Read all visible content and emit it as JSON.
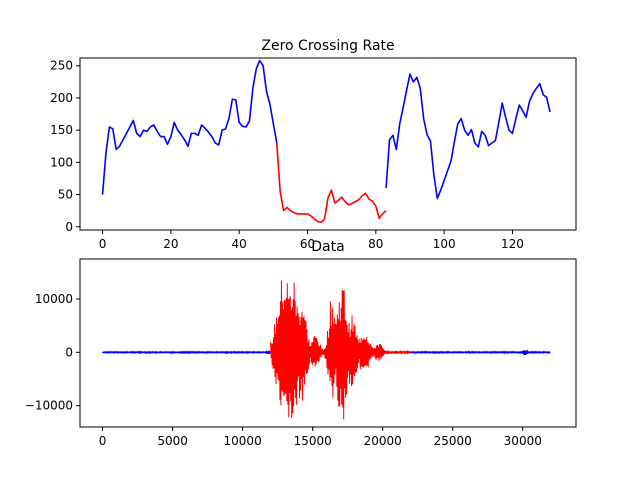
{
  "chart_data": [
    {
      "type": "line",
      "title": "Zero Crossing Rate",
      "xlim": [
        -6.6,
        138.6
      ],
      "ylim": [
        -5,
        262
      ],
      "xticks": [
        0,
        20,
        40,
        60,
        80,
        100,
        120
      ],
      "xtick_labels": [
        "0",
        "20",
        "40",
        "60",
        "80",
        "100",
        "120"
      ],
      "yticks": [
        0,
        50,
        100,
        150,
        200,
        250
      ],
      "ytick_labels": [
        "0",
        "50",
        "100",
        "150",
        "200",
        "250"
      ],
      "colors": {
        "unvoiced": "#0000ff",
        "voiced": "#ff0000"
      },
      "series": [
        {
          "color": "#0000ff",
          "x": [
            0,
            1,
            2,
            3,
            4,
            5,
            6,
            7,
            8,
            9,
            10,
            11,
            12,
            13,
            14,
            15,
            16,
            17,
            18,
            19,
            20,
            21,
            22,
            23,
            24,
            25,
            26,
            27,
            28,
            29,
            30,
            31,
            32,
            33,
            34,
            35,
            36,
            37,
            38,
            39,
            40,
            41,
            42,
            43,
            44,
            45,
            46,
            47,
            48,
            49,
            50,
            51
          ],
          "y": [
            50,
            115,
            155,
            152,
            120,
            125,
            135,
            145,
            155,
            165,
            145,
            140,
            150,
            148,
            155,
            158,
            148,
            140,
            140,
            128,
            140,
            162,
            150,
            143,
            135,
            125,
            145,
            145,
            142,
            158,
            153,
            147,
            140,
            130,
            127,
            150,
            152,
            168,
            198,
            197,
            162,
            156,
            155,
            164,
            215,
            245,
            258,
            250,
            210,
            190,
            160,
            130
          ]
        },
        {
          "color": "#ff0000",
          "x": [
            51,
            52,
            53,
            54,
            55,
            56,
            57,
            58,
            59,
            60,
            61,
            62,
            63,
            64,
            65,
            66,
            67,
            68,
            69,
            70,
            71,
            72,
            73,
            74,
            75,
            76,
            77,
            78,
            79,
            80,
            81,
            82,
            83
          ],
          "y": [
            130,
            55,
            25,
            30,
            25,
            22,
            20,
            20,
            20,
            20,
            17,
            12,
            8,
            7,
            12,
            45,
            57,
            37,
            41,
            46,
            39,
            34,
            36,
            39,
            42,
            48,
            52,
            43,
            40,
            32,
            13,
            20,
            25
          ]
        },
        {
          "color": "#0000ff",
          "x": [
            83,
            84,
            85,
            86,
            87,
            88,
            89,
            90,
            91,
            92,
            93,
            94,
            95,
            96,
            97,
            98,
            99,
            100,
            101,
            102,
            103,
            104,
            105,
            106,
            107,
            108,
            109,
            110,
            111,
            112,
            113,
            114,
            115,
            116,
            117,
            118,
            119,
            120,
            121,
            122,
            123,
            124,
            125,
            126,
            127,
            128,
            129,
            130,
            131
          ],
          "y": [
            60,
            135,
            142,
            120,
            160,
            185,
            212,
            237,
            225,
            232,
            215,
            168,
            143,
            133,
            80,
            44,
            57,
            72,
            87,
            102,
            132,
            160,
            168,
            150,
            142,
            151,
            130,
            124,
            148,
            142,
            126,
            130,
            134,
            162,
            192,
            170,
            150,
            145,
            168,
            189,
            180,
            170,
            195,
            207,
            215,
            222,
            205,
            201,
            178
          ]
        }
      ]
    },
    {
      "type": "line",
      "title": "Data",
      "xlim": [
        -1610,
        33800
      ],
      "ylim": [
        -14000,
        17500
      ],
      "xticks": [
        0,
        5000,
        10000,
        15000,
        20000,
        25000,
        30000
      ],
      "xtick_labels": [
        "0",
        "5000",
        "10000",
        "15000",
        "20000",
        "25000",
        "30000"
      ],
      "yticks": [
        -10000,
        0,
        10000
      ],
      "ytick_labels": [
        "−10000",
        "0",
        "10000"
      ],
      "segments": [
        {
          "color": "#0000ff",
          "x_range": [
            0,
            12000
          ],
          "amplitude": 300
        },
        {
          "color": "#ff0000",
          "x_range": [
            12000,
            22000
          ],
          "amplitude": 16000
        },
        {
          "color": "#0000ff",
          "x_range": [
            22000,
            32000
          ],
          "amplitude": 500
        }
      ],
      "voiced_region": [
        12000,
        22000
      ]
    }
  ]
}
